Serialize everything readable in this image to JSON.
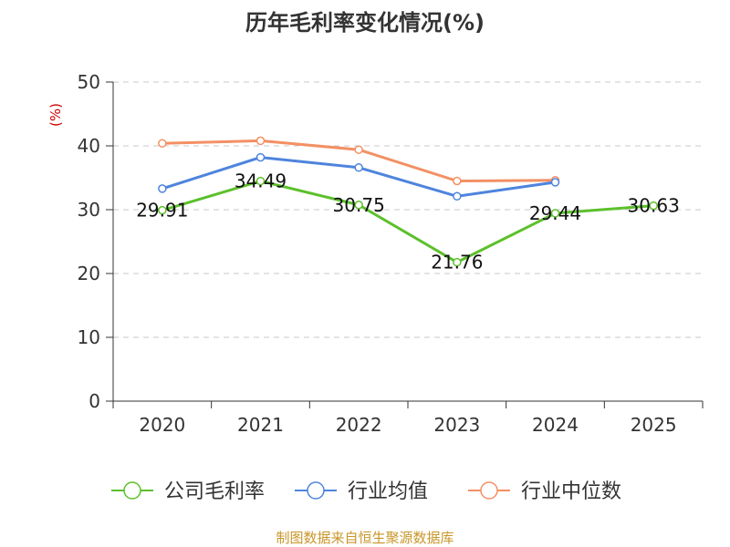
{
  "chart_data": {
    "type": "line",
    "title": "历年毛利率变化情况(%)",
    "ylabel": "(%)",
    "xlabel": "",
    "categories": [
      "2020",
      "2021",
      "2022",
      "2023",
      "2024",
      "2025"
    ],
    "ylim": [
      0,
      50
    ],
    "yticks": [
      0,
      10,
      20,
      30,
      40,
      50
    ],
    "grid": true,
    "legend_position": "bottom",
    "series": [
      {
        "name": "公司毛利率",
        "color": "#5cc02b",
        "values": [
          29.91,
          34.49,
          30.75,
          21.76,
          29.44,
          30.63
        ],
        "labels": [
          "29.91",
          "34.49",
          "30.75",
          "21.76",
          "29.44",
          "30.63"
        ]
      },
      {
        "name": "行业均值",
        "color": "#4e84dd",
        "values": [
          33.3,
          38.2,
          36.6,
          32.1,
          34.3,
          null
        ]
      },
      {
        "name": "行业中位数",
        "color": "#f39064",
        "values": [
          40.4,
          40.8,
          39.4,
          34.5,
          34.6,
          null
        ]
      }
    ],
    "source": "制图数据来自恒生聚源数据库"
  }
}
